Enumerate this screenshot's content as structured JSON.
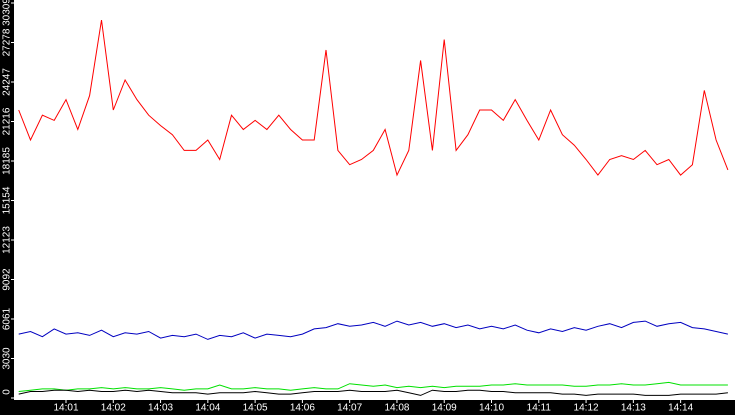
{
  "chart_data": {
    "type": "line",
    "x": [
      840,
      840.25,
      840.5,
      840.75,
      841,
      841.25,
      841.5,
      841.75,
      842,
      842.25,
      842.5,
      842.75,
      843,
      843.25,
      843.5,
      843.75,
      844,
      844.25,
      844.5,
      844.75,
      845,
      845.25,
      845.5,
      845.75,
      846,
      846.25,
      846.5,
      846.75,
      847,
      847.25,
      847.5,
      847.75,
      848,
      848.25,
      848.5,
      848.75,
      849,
      849.25,
      849.5,
      849.75,
      850,
      850.25,
      850.5,
      850.75,
      851,
      851.25,
      851.5,
      851.75,
      852,
      852.25,
      852.5,
      852.75,
      853,
      853.25,
      853.5,
      853.75,
      854,
      854.25,
      854.5,
      854.75,
      855
    ],
    "series": [
      {
        "color": "#ff0000",
        "values": [
          22100,
          19800,
          21700,
          21300,
          22900,
          20600,
          23200,
          29000,
          22100,
          24400,
          22900,
          21700,
          20900,
          20200,
          19000,
          19000,
          19800,
          18300,
          21700,
          20600,
          21300,
          20600,
          21700,
          20600,
          19800,
          19800,
          26700,
          19000,
          17900,
          18300,
          19000,
          20600,
          17100,
          19000,
          25900,
          19000,
          27500,
          19000,
          20200,
          22100,
          22100,
          21300,
          22900,
          21300,
          19800,
          22100,
          20200,
          19400,
          18300,
          17100,
          18300,
          18600,
          18300,
          19000,
          17900,
          18300,
          17100,
          17900,
          23600,
          19800,
          17500
        ]
      },
      {
        "color": "#0000c0",
        "values": [
          4900,
          5100,
          4700,
          5300,
          4900,
          5000,
          4800,
          5200,
          4700,
          5000,
          4900,
          5100,
          4600,
          4800,
          4700,
          4900,
          4500,
          4800,
          4700,
          5000,
          4600,
          4900,
          4800,
          4700,
          4900,
          5300,
          5400,
          5700,
          5500,
          5600,
          5800,
          5500,
          5900,
          5600,
          5800,
          5500,
          5700,
          5400,
          5600,
          5300,
          5500,
          5300,
          5600,
          5200,
          5000,
          5300,
          5100,
          5400,
          5200,
          5500,
          5700,
          5400,
          5800,
          5900,
          5500,
          5700,
          5800,
          5400,
          5300,
          5100,
          4900
        ]
      },
      {
        "color": "#00e000",
        "values": [
          500,
          600,
          700,
          700,
          600,
          700,
          700,
          800,
          700,
          800,
          700,
          700,
          800,
          700,
          600,
          700,
          700,
          1000,
          700,
          700,
          800,
          700,
          700,
          600,
          700,
          800,
          700,
          700,
          1100,
          1000,
          900,
          1000,
          800,
          900,
          800,
          900,
          800,
          900,
          900,
          900,
          1000,
          1000,
          1100,
          1000,
          1000,
          1000,
          1000,
          900,
          900,
          1000,
          1000,
          1100,
          1000,
          1000,
          1100,
          1200,
          1000,
          1000,
          1000,
          1000,
          1000
        ]
      },
      {
        "color": "#000000",
        "values": [
          300,
          500,
          500,
          600,
          600,
          500,
          600,
          500,
          500,
          600,
          500,
          600,
          500,
          400,
          400,
          400,
          300,
          400,
          400,
          400,
          500,
          400,
          300,
          300,
          400,
          500,
          500,
          500,
          600,
          500,
          500,
          500,
          600,
          400,
          200,
          600,
          500,
          500,
          600,
          600,
          500,
          500,
          400,
          400,
          400,
          400,
          300,
          300,
          200,
          300,
          300,
          300,
          300,
          200,
          200,
          200,
          300,
          300,
          300,
          300,
          400
        ]
      }
    ],
    "xlim": [
      839.9,
      855.15
    ],
    "xticks": [
      {
        "value": 841,
        "label": "14:01"
      },
      {
        "value": 842,
        "label": "14:02"
      },
      {
        "value": 843,
        "label": "14:03"
      },
      {
        "value": 844,
        "label": "14:04"
      },
      {
        "value": 845,
        "label": "14:05"
      },
      {
        "value": 846,
        "label": "14:06"
      },
      {
        "value": 847,
        "label": "14:07"
      },
      {
        "value": 848,
        "label": "14:08"
      },
      {
        "value": 849,
        "label": "14:09"
      },
      {
        "value": 850,
        "label": "14:10"
      },
      {
        "value": 851,
        "label": "14:11"
      },
      {
        "value": 852,
        "label": "14:12"
      },
      {
        "value": 853,
        "label": "14:13"
      },
      {
        "value": 854,
        "label": "14:14"
      }
    ],
    "ylim": [
      0,
      30309
    ],
    "yticks": [
      0,
      3030,
      6061,
      9092,
      12123,
      15154,
      18185,
      21216,
      24247,
      27278,
      30309
    ]
  }
}
